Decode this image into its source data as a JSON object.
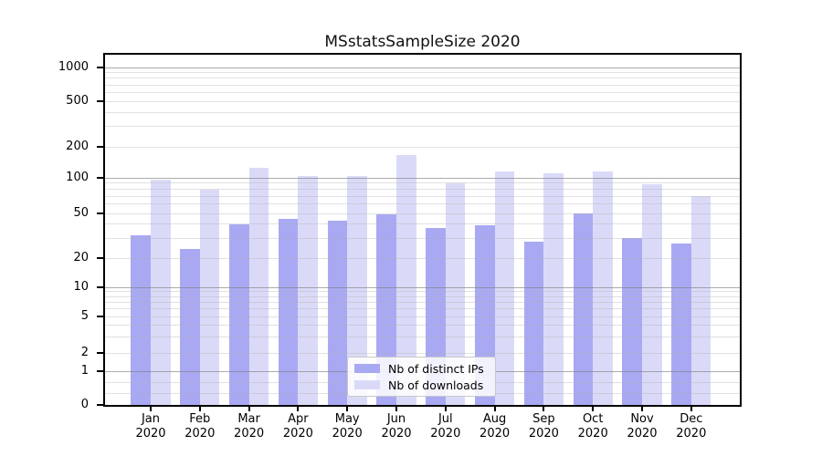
{
  "figure": {
    "title": "MSstatsSampleSize 2020",
    "background_color": "#ffffff"
  },
  "legend": {
    "position": "bottom-center-inside-plot",
    "items": [
      {
        "label": "Nb of distinct IPs",
        "color": "#a9a9f3"
      },
      {
        "label": "Nb of downloads",
        "color": "#dadaf8"
      }
    ]
  },
  "chart_data": {
    "type": "bar",
    "title": "MSstatsSampleSize 2020",
    "categories": [
      "Jan 2020",
      "Feb 2020",
      "Mar 2020",
      "Apr 2020",
      "May 2020",
      "Jun 2020",
      "Jul 2020",
      "Aug 2020",
      "Sep 2020",
      "Oct 2020",
      "Nov 2020",
      "Dec 2020"
    ],
    "x_months": [
      "Jan",
      "Feb",
      "Mar",
      "Apr",
      "May",
      "Jun",
      "Jul",
      "Aug",
      "Sep",
      "Oct",
      "Nov",
      "Dec"
    ],
    "x_year": "2020",
    "series": [
      {
        "name": "Nb of distinct IPs",
        "color": "#a9a9f3",
        "values": [
          32,
          24,
          40,
          45,
          43,
          49,
          37,
          39,
          28,
          50,
          30,
          27
        ]
      },
      {
        "name": "Nb of downloads",
        "color": "#dadaf8",
        "values": [
          96,
          79,
          124,
          104,
          105,
          165,
          90,
          115,
          110,
          115,
          89,
          70
        ]
      }
    ],
    "yscale": "symlog",
    "ylim": [
      0,
      1300
    ],
    "y_ticks": [
      1000,
      500,
      200,
      100,
      50,
      20,
      10,
      5,
      2,
      1,
      0
    ],
    "y_major_gridline_values": [
      1,
      10,
      100,
      1000
    ],
    "grid": "horizontal major and minor, drawn over bars",
    "legend_entries": [
      "Nb of distinct IPs",
      "Nb of downloads"
    ]
  }
}
